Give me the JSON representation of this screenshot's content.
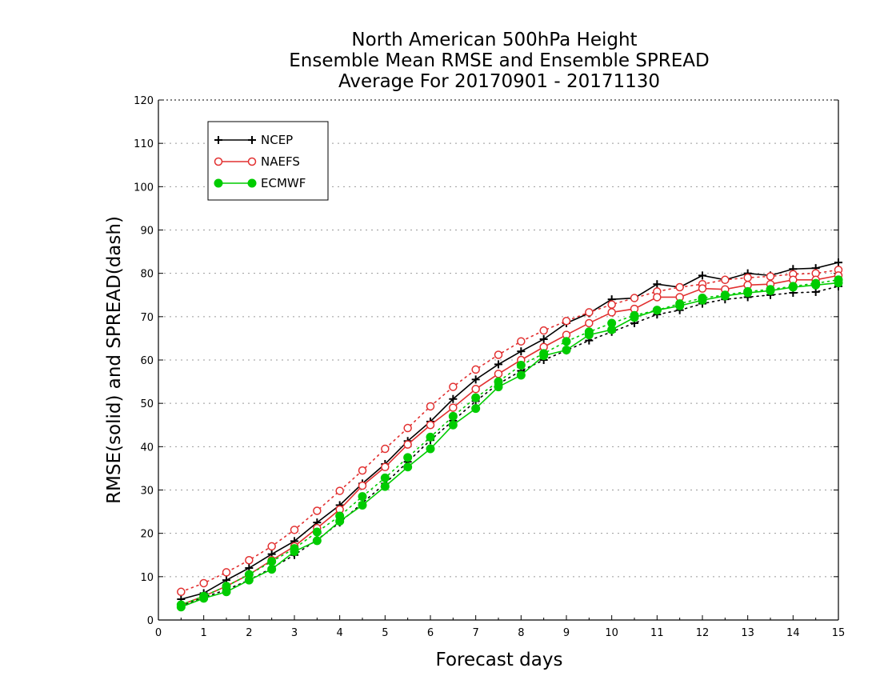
{
  "chart_data": {
    "type": "line",
    "title": [
      "North American 500hPa Height",
      "Ensemble Mean RMSE and Ensemble SPREAD",
      "Average For 20170901 - 20171130"
    ],
    "xlabel": "Forecast days",
    "ylabel": "RMSE(solid) and SPREAD(dash)",
    "xlim": [
      0,
      15
    ],
    "ylim": [
      0,
      120
    ],
    "xticks": [
      0,
      1,
      2,
      3,
      4,
      5,
      6,
      7,
      8,
      9,
      10,
      11,
      12,
      13,
      14,
      15
    ],
    "yticks": [
      0,
      10,
      20,
      30,
      40,
      50,
      60,
      70,
      80,
      90,
      100,
      110,
      120
    ],
    "grid": true,
    "legend_position": "top-left",
    "x": [
      0.5,
      1,
      1.5,
      2,
      2.5,
      3,
      3.5,
      4,
      4.5,
      5,
      5.5,
      6,
      6.5,
      7,
      7.5,
      8,
      8.5,
      9,
      9.5,
      10,
      10.5,
      11,
      11.5,
      12,
      12.5,
      13,
      13.5,
      14,
      14.5,
      15
    ],
    "series": [
      {
        "name": "NCEP",
        "color": "#000000",
        "marker": "plus",
        "rmse": [
          4.8,
          6.2,
          9.2,
          12.0,
          15.2,
          18.2,
          22.5,
          26.5,
          31.5,
          36.0,
          41.3,
          45.8,
          51.0,
          55.5,
          59.0,
          62.0,
          64.8,
          68.5,
          70.8,
          74.0,
          74.3,
          77.5,
          76.8,
          79.5,
          78.5,
          80.0,
          79.5,
          81.0,
          81.2,
          82.5
        ],
        "spread": [
          3.2,
          5.2,
          7.0,
          9.2,
          12.0,
          15.0,
          18.5,
          22.5,
          27.0,
          31.5,
          36.5,
          41.5,
          46.0,
          50.5,
          54.5,
          57.5,
          60.0,
          62.2,
          64.5,
          66.5,
          68.5,
          70.5,
          71.5,
          73.0,
          74.0,
          74.5,
          75.0,
          75.5,
          75.7,
          77.0
        ]
      },
      {
        "name": "NAEFS",
        "color": "#e23030",
        "marker": "open-circle",
        "rmse": [
          3.5,
          5.5,
          7.8,
          10.5,
          13.8,
          17.0,
          21.2,
          25.5,
          31.0,
          35.3,
          40.5,
          45.0,
          49.0,
          53.3,
          56.8,
          60.0,
          63.0,
          65.8,
          68.5,
          71.0,
          71.8,
          74.5,
          74.5,
          76.5,
          76.3,
          77.3,
          77.5,
          78.5,
          78.5,
          79.5
        ],
        "spread": [
          6.5,
          8.5,
          11.0,
          13.8,
          17.0,
          20.8,
          25.2,
          29.8,
          34.5,
          39.5,
          44.3,
          49.3,
          53.8,
          57.8,
          61.2,
          64.3,
          66.8,
          69.0,
          71.0,
          72.8,
          74.3,
          75.8,
          76.8,
          77.5,
          78.5,
          79.0,
          79.3,
          79.8,
          80.0,
          80.8
        ]
      },
      {
        "name": "ECMWF",
        "color": "#00cc00",
        "marker": "filled-circle",
        "rmse": [
          3.0,
          5.0,
          6.5,
          9.2,
          11.7,
          15.8,
          18.3,
          22.8,
          26.5,
          30.8,
          35.3,
          39.5,
          45.0,
          48.8,
          53.8,
          56.5,
          61.0,
          62.3,
          65.8,
          67.0,
          69.8,
          71.5,
          72.5,
          73.8,
          74.8,
          75.5,
          76.0,
          76.8,
          77.3,
          77.8
        ],
        "spread": [
          3.5,
          5.5,
          7.8,
          10.5,
          13.5,
          16.5,
          20.3,
          24.0,
          28.5,
          32.8,
          37.5,
          42.2,
          47.0,
          51.3,
          55.0,
          58.8,
          61.5,
          64.3,
          66.5,
          68.5,
          70.3,
          71.5,
          73.0,
          74.3,
          75.0,
          75.8,
          76.3,
          77.0,
          77.7,
          78.5
        ]
      }
    ]
  }
}
